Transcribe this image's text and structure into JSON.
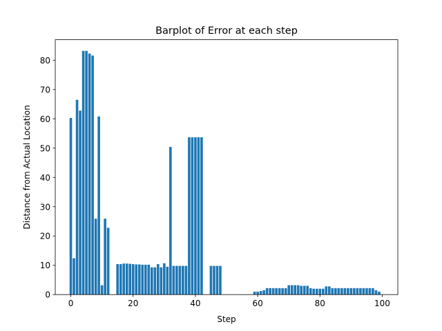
{
  "chart_data": {
    "type": "bar",
    "title": "Barplot of Error at each step",
    "xlabel": "Step",
    "ylabel": "Distance from Actual Location",
    "xlim": [
      -5,
      105
    ],
    "ylim": [
      0,
      87
    ],
    "xticks": [
      0,
      20,
      40,
      60,
      80,
      100
    ],
    "yticks": [
      0,
      10,
      20,
      30,
      40,
      50,
      60,
      70,
      80
    ],
    "grid": false,
    "bar_color": "#1f77b4",
    "x": [
      0,
      1,
      2,
      3,
      4,
      5,
      6,
      7,
      8,
      9,
      10,
      11,
      12,
      13,
      14,
      15,
      16,
      17,
      18,
      19,
      20,
      21,
      22,
      23,
      24,
      25,
      26,
      27,
      28,
      29,
      30,
      31,
      32,
      33,
      34,
      35,
      36,
      37,
      38,
      39,
      40,
      41,
      42,
      43,
      44,
      45,
      46,
      47,
      48,
      49,
      50,
      51,
      52,
      53,
      54,
      55,
      56,
      57,
      58,
      59,
      60,
      61,
      62,
      63,
      64,
      65,
      66,
      67,
      68,
      69,
      70,
      71,
      72,
      73,
      74,
      75,
      76,
      77,
      78,
      79,
      80,
      81,
      82,
      83,
      84,
      85,
      86,
      87,
      88,
      89,
      90,
      91,
      92,
      93,
      94,
      95,
      96,
      97,
      98,
      99
    ],
    "values": [
      60.3,
      12.4,
      66.5,
      62.8,
      83.2,
      83.2,
      82.3,
      81.6,
      25.9,
      60.8,
      3.2,
      25.9,
      22.8,
      0,
      0,
      10.4,
      10.4,
      10.6,
      10.6,
      10.5,
      10.4,
      10.3,
      10.3,
      10.2,
      10.2,
      10.2,
      9.3,
      9.3,
      10.4,
      9.3,
      10.7,
      9.5,
      50.4,
      9.8,
      9.8,
      9.8,
      9.8,
      9.8,
      53.7,
      53.7,
      53.7,
      53.7,
      53.7,
      0,
      0,
      9.8,
      9.8,
      9.8,
      9.8,
      0,
      0,
      0,
      0,
      0,
      0,
      0,
      0,
      0,
      0,
      1.0,
      1.0,
      1.2,
      1.5,
      2.2,
      2.2,
      2.2,
      2.2,
      2.2,
      2.2,
      2.2,
      3.2,
      3.2,
      3.2,
      3.2,
      3.0,
      3.0,
      3.0,
      2.2,
      2.0,
      2.0,
      2.0,
      2.0,
      2.8,
      2.8,
      2.2,
      2.2,
      2.2,
      2.2,
      2.2,
      2.2,
      2.2,
      2.2,
      2.2,
      2.2,
      2.2,
      2.2,
      2.2,
      2.2,
      1.5,
      1.0
    ]
  }
}
